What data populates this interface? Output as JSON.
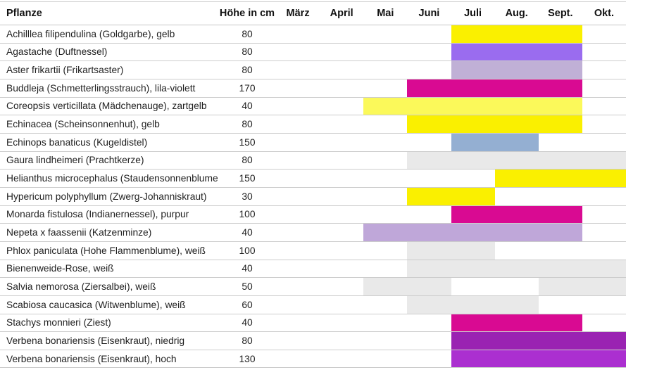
{
  "header": {
    "plant_label": "Pflanze",
    "height_label": "Höhe in cm"
  },
  "months": [
    "März",
    "April",
    "Mai",
    "Juni",
    "Juli",
    "Aug.",
    "Sept.",
    "Okt."
  ],
  "colors": {
    "yellow": "#FAF000",
    "light_yellow": "#FBF95A",
    "magenta": "#D90A92",
    "purple": "#9A6CEF",
    "lavender": "#C0B0D6",
    "lilac": "#BFA7D9",
    "steel_blue": "#94AFD2",
    "light_gray": "#E9E9E9",
    "dark_purple": "#9A23B2",
    "violet": "#AB2FD0"
  },
  "rows": [
    {
      "name": "Achilllea filipendulina (Goldgarbe), gelb",
      "height": "80",
      "segments": [
        {
          "start": 4,
          "end": 6,
          "color": "yellow"
        }
      ]
    },
    {
      "name": "Agastache (Duftnessel)",
      "height": "80",
      "segments": [
        {
          "start": 4,
          "end": 6,
          "color": "purple"
        }
      ]
    },
    {
      "name": "Aster frikartii (Frikartsaster)",
      "height": "80",
      "segments": [
        {
          "start": 4,
          "end": 6,
          "color": "lavender"
        }
      ]
    },
    {
      "name": "Buddleja (Schmetterlingsstrauch), lila-violett",
      "height": "170",
      "segments": [
        {
          "start": 3,
          "end": 6,
          "color": "magenta"
        }
      ]
    },
    {
      "name": "Coreopsis verticillata (Mädchenauge), zartgelb",
      "height": "40",
      "segments": [
        {
          "start": 2,
          "end": 6,
          "color": "light_yellow"
        }
      ]
    },
    {
      "name": "Echinacea (Scheinsonnenhut), gelb",
      "height": "80",
      "segments": [
        {
          "start": 3,
          "end": 6,
          "color": "yellow"
        }
      ]
    },
    {
      "name": "Echinops banaticus (Kugeldistel)",
      "height": "150",
      "segments": [
        {
          "start": 4,
          "end": 5,
          "color": "steel_blue"
        }
      ]
    },
    {
      "name": "Gaura lindheimeri (Prachtkerze)",
      "height": "80",
      "segments": [
        {
          "start": 3,
          "end": 7,
          "color": "light_gray"
        }
      ]
    },
    {
      "name": "Helianthus microcephalus (Staudensonnenblume)",
      "height": "150",
      "segments": [
        {
          "start": 5,
          "end": 7,
          "color": "yellow"
        }
      ]
    },
    {
      "name": "Hypericum polyphyllum (Zwerg-Johanniskraut)",
      "height": "30",
      "segments": [
        {
          "start": 3,
          "end": 4,
          "color": "yellow"
        }
      ]
    },
    {
      "name": "Monarda fistulosa (Indianernessel), purpur",
      "height": "100",
      "segments": [
        {
          "start": 4,
          "end": 6,
          "color": "magenta"
        }
      ]
    },
    {
      "name": "Nepeta x faassenii (Katzenminze)",
      "height": "40",
      "segments": [
        {
          "start": 2,
          "end": 6,
          "color": "lilac"
        }
      ]
    },
    {
      "name": "Phlox paniculata (Hohe Flammenblume), weiß",
      "height": "100",
      "segments": [
        {
          "start": 3,
          "end": 4,
          "color": "light_gray"
        }
      ]
    },
    {
      "name": "Bienenweide-Rose, weiß",
      "height": "40",
      "segments": [
        {
          "start": 3,
          "end": 7,
          "color": "light_gray"
        }
      ]
    },
    {
      "name": "Salvia nemorosa (Ziersalbei), weiß",
      "height": "50",
      "segments": [
        {
          "start": 2,
          "end": 3,
          "color": "light_gray"
        },
        {
          "start": 6,
          "end": 7,
          "color": "light_gray"
        }
      ]
    },
    {
      "name": "Scabiosa caucasica (Witwenblume), weiß",
      "height": "60",
      "segments": [
        {
          "start": 3,
          "end": 5,
          "color": "light_gray"
        }
      ]
    },
    {
      "name": "Stachys monnieri (Ziest)",
      "height": "40",
      "segments": [
        {
          "start": 4,
          "end": 6,
          "color": "magenta"
        }
      ]
    },
    {
      "name": "Verbena bonariensis (Eisenkraut), niedrig",
      "height": "80",
      "segments": [
        {
          "start": 4,
          "end": 7,
          "color": "dark_purple"
        }
      ]
    },
    {
      "name": "Verbena bonariensis (Eisenkraut), hoch",
      "height": "130",
      "segments": [
        {
          "start": 4,
          "end": 7,
          "color": "violet"
        }
      ]
    }
  ],
  "chart_data": {
    "type": "bar",
    "subtype": "gantt-flowering-calendar",
    "title": "",
    "columns": [
      "Pflanze",
      "Höhe in cm",
      "März",
      "April",
      "Mai",
      "Juni",
      "Juli",
      "Aug.",
      "Sept.",
      "Okt."
    ],
    "x_categories": [
      "März",
      "April",
      "Mai",
      "Juni",
      "Juli",
      "Aug.",
      "Sept.",
      "Okt."
    ],
    "grid": "horizontal-row-separators-only",
    "legend": "none",
    "rows": [
      {
        "plant": "Achilllea filipendulina (Goldgarbe), gelb",
        "height_cm": 80,
        "bloom": [
          {
            "from": "Juli",
            "to": "Sept.",
            "color": "#FAF000"
          }
        ]
      },
      {
        "plant": "Agastache (Duftnessel)",
        "height_cm": 80,
        "bloom": [
          {
            "from": "Juli",
            "to": "Sept.",
            "color": "#9A6CEF"
          }
        ]
      },
      {
        "plant": "Aster frikartii (Frikartsaster)",
        "height_cm": 80,
        "bloom": [
          {
            "from": "Juli",
            "to": "Sept.",
            "color": "#C0B0D6"
          }
        ]
      },
      {
        "plant": "Buddleja (Schmetterlingsstrauch), lila-violett",
        "height_cm": 170,
        "bloom": [
          {
            "from": "Juni",
            "to": "Sept.",
            "color": "#D90A92"
          }
        ]
      },
      {
        "plant": "Coreopsis verticillata (Mädchenauge), zartgelb",
        "height_cm": 40,
        "bloom": [
          {
            "from": "Mai",
            "to": "Sept.",
            "color": "#FBF95A"
          }
        ]
      },
      {
        "plant": "Echinacea (Scheinsonnenhut), gelb",
        "height_cm": 80,
        "bloom": [
          {
            "from": "Juni",
            "to": "Sept.",
            "color": "#FAF000"
          }
        ]
      },
      {
        "plant": "Echinops banaticus (Kugeldistel)",
        "height_cm": 150,
        "bloom": [
          {
            "from": "Juli",
            "to": "Aug.",
            "color": "#94AFD2"
          }
        ]
      },
      {
        "plant": "Gaura lindheimeri (Prachtkerze)",
        "height_cm": 80,
        "bloom": [
          {
            "from": "Juni",
            "to": "Okt.",
            "color": "#E9E9E9"
          }
        ]
      },
      {
        "plant": "Helianthus microcephalus (Staudensonnenblume)",
        "height_cm": 150,
        "bloom": [
          {
            "from": "Aug.",
            "to": "Okt.",
            "color": "#FAF000"
          }
        ]
      },
      {
        "plant": "Hypericum polyphyllum (Zwerg-Johanniskraut)",
        "height_cm": 30,
        "bloom": [
          {
            "from": "Juni",
            "to": "Juli",
            "color": "#FAF000"
          }
        ]
      },
      {
        "plant": "Monarda fistulosa (Indianernessel), purpur",
        "height_cm": 100,
        "bloom": [
          {
            "from": "Juli",
            "to": "Sept.",
            "color": "#D90A92"
          }
        ]
      },
      {
        "plant": "Nepeta x faassenii (Katzenminze)",
        "height_cm": 40,
        "bloom": [
          {
            "from": "Mai",
            "to": "Sept.",
            "color": "#BFA7D9"
          }
        ]
      },
      {
        "plant": "Phlox paniculata (Hohe Flammenblume), weiß",
        "height_cm": 100,
        "bloom": [
          {
            "from": "Juni",
            "to": "Juli",
            "color": "#E9E9E9"
          }
        ]
      },
      {
        "plant": "Bienenweide-Rose, weiß",
        "height_cm": 40,
        "bloom": [
          {
            "from": "Juni",
            "to": "Okt.",
            "color": "#E9E9E9"
          }
        ]
      },
      {
        "plant": "Salvia nemorosa (Ziersalbei), weiß",
        "height_cm": 50,
        "bloom": [
          {
            "from": "Mai",
            "to": "Juni",
            "color": "#E9E9E9"
          },
          {
            "from": "Sept.",
            "to": "Okt.",
            "color": "#E9E9E9"
          }
        ]
      },
      {
        "plant": "Scabiosa caucasica (Witwenblume), weiß",
        "height_cm": 60,
        "bloom": [
          {
            "from": "Juni",
            "to": "Aug.",
            "color": "#E9E9E9"
          }
        ]
      },
      {
        "plant": "Stachys monnieri (Ziest)",
        "height_cm": 40,
        "bloom": [
          {
            "from": "Juli",
            "to": "Sept.",
            "color": "#D90A92"
          }
        ]
      },
      {
        "plant": "Verbena bonariensis (Eisenkraut), niedrig",
        "height_cm": 80,
        "bloom": [
          {
            "from": "Juli",
            "to": "Okt.",
            "color": "#9A23B2"
          }
        ]
      },
      {
        "plant": "Verbena bonariensis (Eisenkraut), hoch",
        "height_cm": 130,
        "bloom": [
          {
            "from": "Juli",
            "to": "Okt.",
            "color": "#AB2FD0"
          }
        ]
      }
    ]
  }
}
